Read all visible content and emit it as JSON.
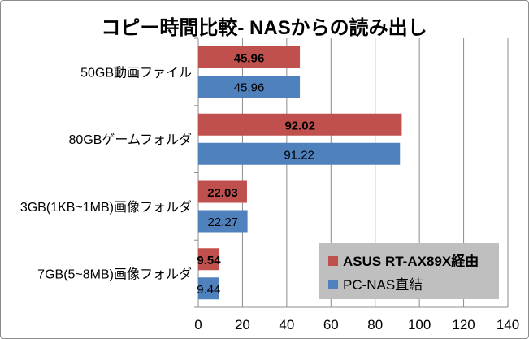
{
  "chart_data": {
    "type": "bar",
    "orientation": "horizontal",
    "title": "コピー時間比較- NASからの読み出し",
    "xlabel": "",
    "ylabel": "",
    "xlim": [
      0,
      140
    ],
    "xticks": [
      0,
      20,
      40,
      60,
      80,
      100,
      120,
      140
    ],
    "grid": true,
    "legend_position": "bottom-right",
    "categories": [
      "50GB動画ファイル",
      "80GBゲームフォルダ",
      "3GB(1KB~1MB)画像フォルダ",
      "7GB(5~8MB)画像フォルダ"
    ],
    "series": [
      {
        "name": "ASUS RT-AX89X経由",
        "color": "#c0504d",
        "label_bold": true,
        "values": [
          45.96,
          92.02,
          22.03,
          9.54
        ]
      },
      {
        "name": "PC-NAS直結",
        "color": "#4f81bd",
        "label_bold": false,
        "values": [
          45.96,
          91.22,
          22.27,
          9.44
        ]
      }
    ],
    "colors": {
      "grid": "#8c8c8c",
      "legend_bg": "#bfbfbf"
    }
  }
}
